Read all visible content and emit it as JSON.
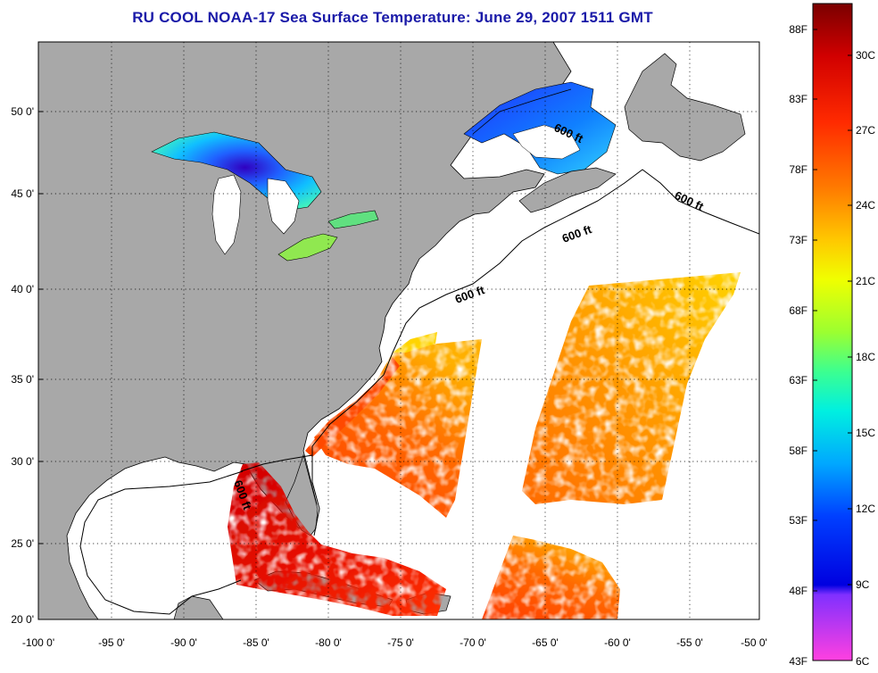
{
  "title": "RU COOL  NOAA-17  Sea Surface Temperature:  June 29, 2007 1511 GMT",
  "map": {
    "lon_range": [
      -100,
      -50
    ],
    "lat_range": [
      20,
      52.5
    ],
    "lon_ticks": [
      "-100 0'",
      "-95 0'",
      "-90 0'",
      "-85 0'",
      "-80 0'",
      "-75 0'",
      "-70 0'",
      "-65 0'",
      "-60 0'",
      "-55 0'",
      "-50 0'"
    ],
    "lat_ticks": [
      "20 0'",
      "25 0'",
      "30 0'",
      "35 0'",
      "40 0'",
      "45 0'",
      "50 0'"
    ],
    "grid": "dotted",
    "land_color": "#a8a8a8",
    "water_color": "#ffffff",
    "contour_labels": [
      "600 ft",
      "600 ft",
      "600 ft",
      "600 ft",
      "600 ft"
    ]
  },
  "colorbar": {
    "fahrenheit": [
      "88F",
      "83F",
      "78F",
      "73F",
      "68F",
      "63F",
      "58F",
      "53F",
      "48F",
      "43F"
    ],
    "celsius": [
      "30C",
      "27C",
      "24C",
      "21C",
      "18C",
      "15C",
      "12C",
      "9C",
      "6C"
    ],
    "colors_top_to_bottom": [
      "#7a0000",
      "#d10000",
      "#ff2a00",
      "#ff7a00",
      "#ffc800",
      "#f0ff00",
      "#9cff30",
      "#3cff90",
      "#00f0e0",
      "#00a8ff",
      "#0040ff",
      "#0000e0",
      "#8030ff",
      "#ff40e0"
    ]
  }
}
